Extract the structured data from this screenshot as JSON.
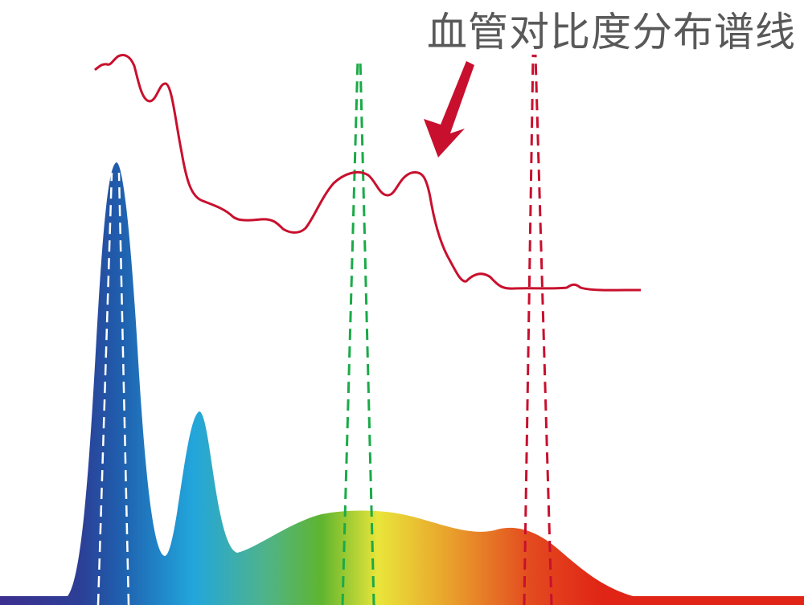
{
  "title": "血管对比度分布谱线",
  "colors": {
    "contrast_curve": "#c8102e",
    "arrow": "#c8102e",
    "title_text": "#595959",
    "blue_peak_markers": "#ffffff",
    "green_markers": "#1aaa48",
    "red_markers": "#c8102e",
    "spectrum_gradient": [
      "#3b2f8f",
      "#1f5fae",
      "#22a6dc",
      "#4fb36a",
      "#6ab82f",
      "#e9e53a",
      "#e9a02c",
      "#e34a1f",
      "#e02415"
    ]
  }
}
